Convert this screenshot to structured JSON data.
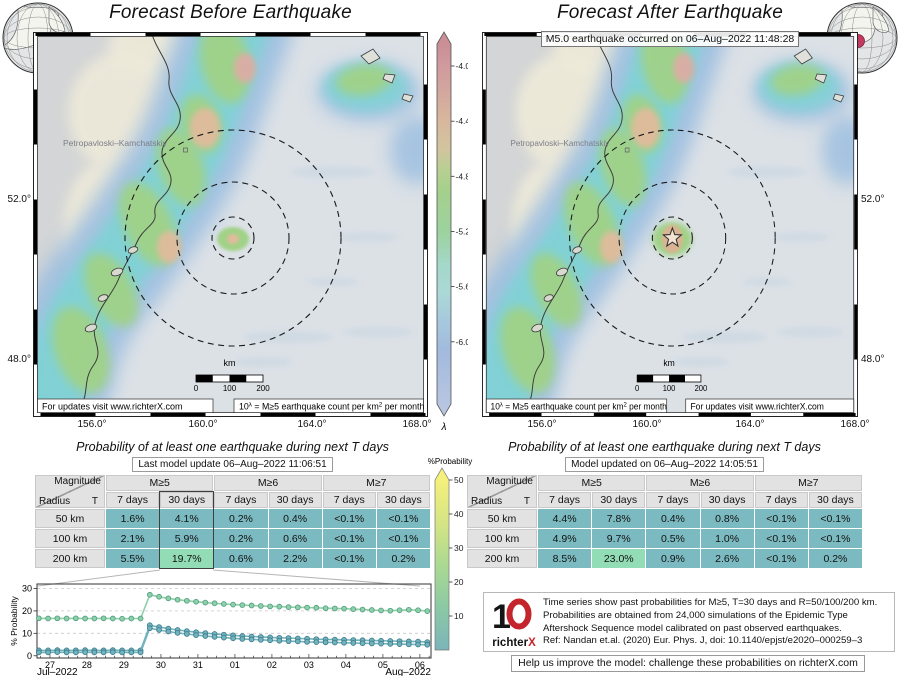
{
  "maps": {
    "before": {
      "title": "Forecast Before Earthquake",
      "updates_note": "For updates visit www.richterX.com",
      "lat_labels": [
        "52.0°",
        "48.0°"
      ],
      "lon_labels": [
        "156.0°",
        "160.0°",
        "164.0°",
        "168.0°"
      ],
      "city": "Petropavloski–Kamchatskiy",
      "scale_unit": "km",
      "scale_ticks": [
        "0",
        "100",
        "200"
      ]
    },
    "after": {
      "title": "Forecast After Earthquake",
      "event_box": "M5.0 earthquake occurred on 06–Aug–2022 11:48:28",
      "updates_note": "For updates visit www.richterX.com",
      "lat_labels": [
        "52.0°",
        "48.0°"
      ],
      "lon_labels": [
        "156.0°",
        "160.0°",
        "164.0°",
        "168.0°"
      ],
      "city": "Petropavloski–Kamchatskiy",
      "scale_unit": "km",
      "scale_ticks": [
        "0",
        "100",
        "200"
      ]
    },
    "note_parts": {
      "prefix": "10",
      "sup1": "λ",
      "mid": " = M≥5 earthquake count per km",
      "sup2": "2",
      "suffix": " per month"
    },
    "lambda_colorbar": {
      "label": "λ",
      "ticks": [
        "-4.0",
        "-4.4",
        "-4.8",
        "-5.2",
        "-5.6",
        "-6.0"
      ],
      "stops": [
        {
          "o": 0.0,
          "c": "#c98f95"
        },
        {
          "o": 0.061,
          "c": "#d09a9e"
        },
        {
          "o": 0.137,
          "c": "#d3a89e"
        },
        {
          "o": 0.214,
          "c": "#d8b79d"
        },
        {
          "o": 0.291,
          "c": "#d2c49e"
        },
        {
          "o": 0.35,
          "c": "#b8cf93"
        },
        {
          "o": 0.406,
          "c": "#a5d08c"
        },
        {
          "o": 0.52,
          "c": "#9dd29e"
        },
        {
          "o": 0.617,
          "c": "#a4d8cb"
        },
        {
          "o": 0.69,
          "c": "#abd9d6"
        },
        {
          "o": 0.77,
          "c": "#a6c9dd"
        },
        {
          "o": 0.85,
          "c": "#a2badd"
        },
        {
          "o": 1.0,
          "c": "#b7c5e1"
        }
      ]
    }
  },
  "tables": {
    "title": "Probability of at least one earthquake during next T days",
    "corner": {
      "magnitude": "Magnitude",
      "radius": "Radius",
      "t": "T"
    },
    "mag_groups": [
      "M≥5",
      "M≥6",
      "M≥7"
    ],
    "period_headers": [
      "7 days",
      "30 days",
      "7 days",
      "30 days",
      "7 days",
      "30 days"
    ],
    "before": {
      "subtitle": "Last model update 06–Aug–2022 11:06:51",
      "rows": [
        {
          "radius": "50 km",
          "values": [
            "1.6%",
            "4.1%",
            "0.2%",
            "0.4%",
            "<0.1%",
            "<0.1%"
          ]
        },
        {
          "radius": "100 km",
          "values": [
            "2.1%",
            "5.9%",
            "0.2%",
            "0.6%",
            "<0.1%",
            "<0.1%"
          ]
        },
        {
          "radius": "200 km",
          "values": [
            "5.5%",
            "19.7%",
            "0.6%",
            "2.2%",
            "<0.1%",
            "0.2%"
          ]
        }
      ],
      "highlighted_column": 1
    },
    "after": {
      "subtitle": "Model updated on 06–Aug–2022 14:05:51",
      "rows": [
        {
          "radius": "50 km",
          "values": [
            "4.4%",
            "7.8%",
            "0.4%",
            "0.8%",
            "<0.1%",
            "<0.1%"
          ]
        },
        {
          "radius": "100 km",
          "values": [
            "4.9%",
            "9.7%",
            "0.5%",
            "1.0%",
            "<0.1%",
            "<0.1%"
          ]
        },
        {
          "radius": "200 km",
          "values": [
            "8.5%",
            "23.0%",
            "0.9%",
            "2.6%",
            "<0.1%",
            "0.2%"
          ]
        }
      ],
      "highlighted_column": -1
    },
    "prob_colorbar": {
      "label": "%Probability",
      "ticks": [
        "10",
        "20",
        "30",
        "40",
        "50"
      ],
      "stops": [
        {
          "o": 0.0,
          "c": "#f4f07c"
        },
        {
          "o": 0.25,
          "c": "#d6e584"
        },
        {
          "o": 0.5,
          "c": "#abd992"
        },
        {
          "o": 0.75,
          "c": "#8bc9a4"
        },
        {
          "o": 1.0,
          "c": "#7cb5b9"
        }
      ]
    }
  },
  "chart_data": {
    "type": "line",
    "ylabel": "% Probability",
    "month_left": "Jul–2022",
    "month_right": "Aug–2022",
    "ylim": [
      0,
      32
    ],
    "yticks": [
      0,
      10,
      20,
      30
    ],
    "grid": "dashed-horizontal",
    "x_tick_days": [
      27,
      28,
      29,
      30,
      31,
      32,
      33,
      34,
      35,
      36,
      37
    ],
    "x_tick_labels": [
      "27",
      "28",
      "29",
      "30",
      "31",
      "01",
      "02",
      "03",
      "04",
      "05",
      "06"
    ],
    "xlim": [
      26.65,
      37.3
    ],
    "x": [
      26.7,
      26.95,
      27.2,
      27.45,
      27.7,
      27.95,
      28.2,
      28.45,
      28.7,
      28.95,
      29.2,
      29.45,
      29.7,
      29.95,
      30.2,
      30.45,
      30.7,
      30.95,
      31.2,
      31.45,
      31.7,
      31.95,
      32.2,
      32.45,
      32.7,
      32.95,
      33.2,
      33.45,
      33.7,
      33.95,
      34.2,
      34.45,
      34.7,
      34.95,
      35.2,
      35.45,
      35.7,
      35.95,
      36.2,
      36.45,
      36.7,
      36.95,
      37.2
    ],
    "series": [
      {
        "name": "R=200 km",
        "fill": "#8ed0a9",
        "edge": "#56a183",
        "y": [
          16.7,
          16.6,
          16.7,
          16.6,
          16.7,
          16.6,
          16.6,
          16.7,
          16.6,
          16.5,
          16.6,
          16.6,
          27.2,
          26.3,
          25.6,
          25.0,
          24.5,
          24.1,
          23.7,
          23.4,
          23.1,
          22.8,
          22.6,
          22.4,
          22.2,
          22.0,
          21.9,
          21.7,
          21.6,
          21.5,
          21.4,
          21.2,
          21.1,
          21.0,
          20.8,
          20.6,
          20.4,
          20.2,
          20.1,
          20.3,
          20.5,
          20.3,
          19.9
        ]
      },
      {
        "name": "R=100 km",
        "fill": "#72b3bd",
        "edge": "#3f7e8e",
        "y": [
          2.4,
          2.4,
          2.5,
          2.4,
          2.4,
          2.5,
          2.4,
          2.4,
          2.5,
          2.4,
          2.4,
          2.4,
          13.6,
          12.8,
          12.1,
          11.5,
          11.0,
          10.5,
          10.1,
          9.7,
          9.4,
          9.1,
          8.8,
          8.6,
          8.4,
          8.2,
          8.0,
          7.9,
          7.7,
          7.6,
          7.4,
          7.3,
          7.2,
          7.1,
          7.0,
          6.9,
          6.8,
          6.7,
          6.6,
          6.5,
          6.4,
          6.3,
          6.1
        ]
      },
      {
        "name": "R=50 km",
        "fill": "#72b3bd",
        "edge": "#3f7e8e",
        "y": [
          1.5,
          1.5,
          1.6,
          1.5,
          1.5,
          1.6,
          1.5,
          1.5,
          1.6,
          1.5,
          1.5,
          1.5,
          12.3,
          11.5,
          10.8,
          10.2,
          9.7,
          9.2,
          8.8,
          8.4,
          8.1,
          7.8,
          7.5,
          7.3,
          7.1,
          6.9,
          6.7,
          6.5,
          6.4,
          6.2,
          6.1,
          6.0,
          5.9,
          5.8,
          5.7,
          5.6,
          5.5,
          5.4,
          5.3,
          5.2,
          5.1,
          5.0,
          4.9
        ]
      }
    ]
  },
  "footer": {
    "logo": {
      "mark": "1",
      "name_black": "richter",
      "name_red": "X"
    },
    "lines": [
      "Time series show past probabilities for M≥5, T=30 days and R=50/100/200 km.",
      "Probabilities are obtained from 24,000 simulations of the Epidemic Type",
      "Aftershock Sequence model calibrated on past observed earthquakes.",
      "Ref: Nandan et.al. (2020) Eur. Phys. J, doi: 10.1140/epjst/e2020–000259–3"
    ],
    "challenge": "Help us improve the model: challenge these probabilities on richterX.com"
  },
  "colors": {
    "cell_teal": "#7cbac1",
    "cell_green": "#93ddb6",
    "sea": "#dce1e6",
    "land": "#d3d5d6",
    "band_blue": "#9dbfe0",
    "band_cyan": "#80d2d5",
    "band_green": "#a0d287",
    "spot_tan": "#e1bb9c",
    "spot_pink": "#dfaaa4",
    "globe_dot": "#c23a5f",
    "logo_red": "#c4242b"
  }
}
